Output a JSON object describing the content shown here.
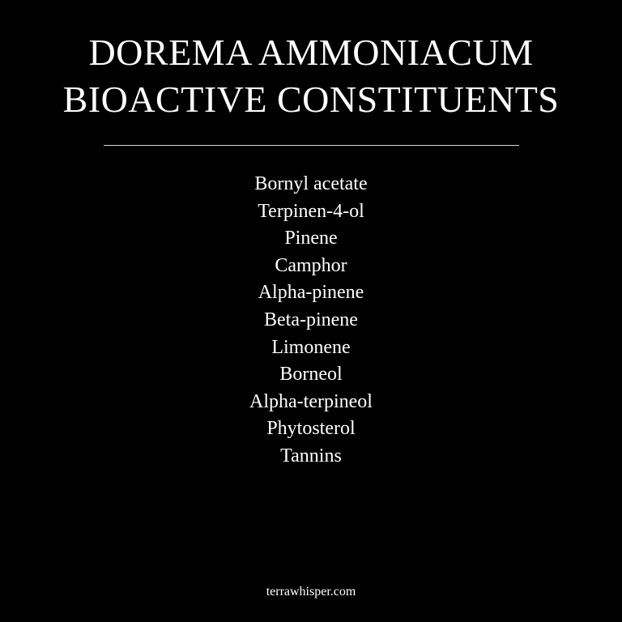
{
  "title": {
    "line1": "DOREMA AMMONIACUM",
    "line2": "BIOACTIVE CONSTITUENTS"
  },
  "constituents": [
    "Bornyl acetate",
    "Terpinen-4-ol",
    "Pinene",
    "Camphor",
    "Alpha-pinene",
    "Beta-pinene",
    "Limonene",
    "Borneol",
    "Alpha-terpineol",
    "Phytosterol",
    "Tannins"
  ],
  "footer": {
    "site": "terrawhisper.com"
  },
  "colors": {
    "background": "#000000",
    "text": "#ffffff",
    "divider": "#d8d8d8"
  }
}
